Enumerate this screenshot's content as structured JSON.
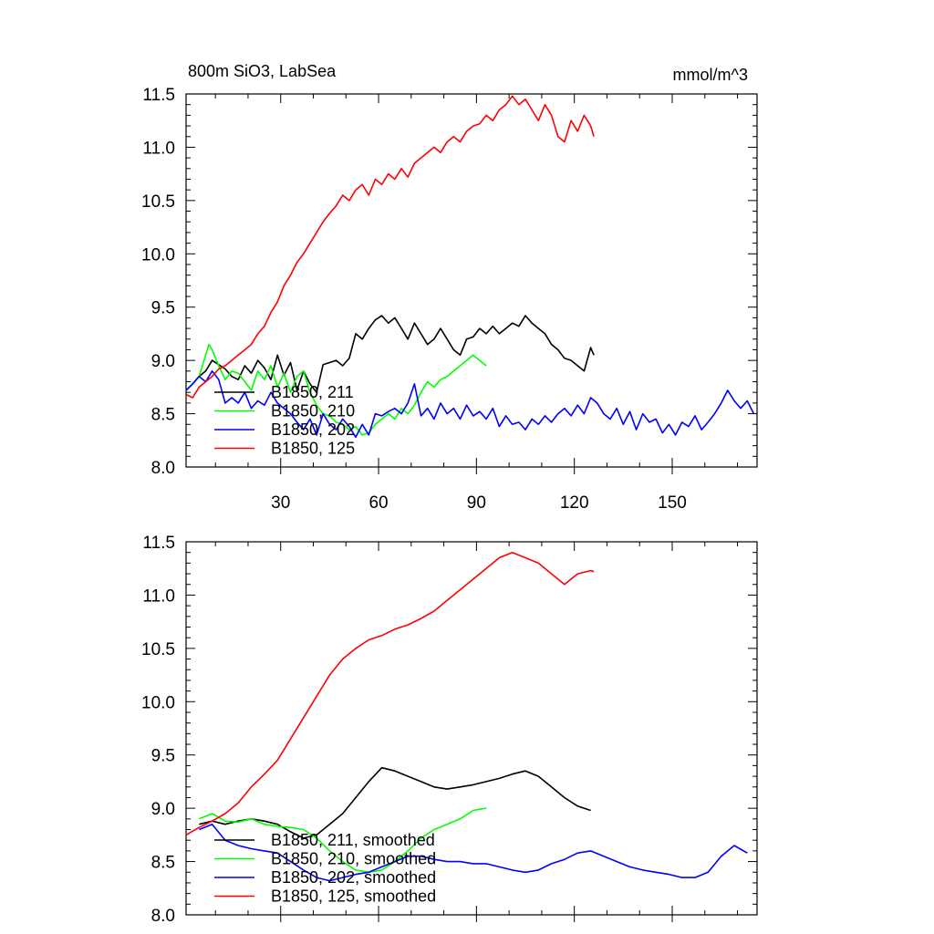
{
  "chart_data": [
    {
      "type": "line",
      "title": "800m SiO3, LabSea",
      "units": "mmol/m^3",
      "xlim": [
        1,
        176
      ],
      "ylim": [
        8.0,
        11.5
      ],
      "x_ticks": [
        30,
        60,
        90,
        120,
        150
      ],
      "x_tick_labels": [
        "30",
        "60",
        "90",
        "120",
        "150"
      ],
      "y_ticks": [
        8.0,
        8.5,
        9.0,
        9.5,
        10.0,
        10.5,
        11.0,
        11.5
      ],
      "y_tick_labels": [
        "8.0",
        "8.5",
        "9.0",
        "9.5",
        "10.0",
        "10.5",
        "11.0",
        "11.5"
      ],
      "legend_position": "bottom-left",
      "series": [
        {
          "name": "B1850, 211",
          "color": "#000000",
          "x": [
            1,
            3,
            5,
            7,
            9,
            11,
            13,
            15,
            17,
            19,
            21,
            23,
            25,
            27,
            29,
            31,
            33,
            35,
            37,
            39,
            41,
            43,
            45,
            47,
            49,
            51,
            53,
            55,
            57,
            59,
            61,
            63,
            65,
            67,
            69,
            71,
            73,
            75,
            77,
            79,
            81,
            83,
            85,
            87,
            89,
            91,
            93,
            95,
            97,
            99,
            101,
            103,
            105,
            107,
            109,
            111,
            113,
            115,
            117,
            119,
            121,
            123,
            125,
            126
          ],
          "y": [
            8.72,
            8.78,
            8.85,
            8.9,
            9.0,
            8.96,
            8.92,
            8.85,
            8.82,
            8.95,
            8.88,
            9.0,
            8.93,
            8.82,
            9.05,
            8.86,
            8.98,
            8.72,
            8.9,
            8.78,
            8.7,
            8.96,
            8.98,
            9.0,
            8.95,
            9.02,
            9.25,
            9.2,
            9.3,
            9.38,
            9.42,
            9.35,
            9.4,
            9.3,
            9.2,
            9.35,
            9.25,
            9.15,
            9.2,
            9.3,
            9.2,
            9.1,
            9.05,
            9.2,
            9.22,
            9.3,
            9.25,
            9.32,
            9.25,
            9.3,
            9.35,
            9.32,
            9.42,
            9.35,
            9.3,
            9.25,
            9.15,
            9.1,
            9.02,
            9.0,
            8.95,
            8.9,
            9.12,
            9.05
          ]
        },
        {
          "name": "B1850, 210",
          "color": "#00ff00",
          "x": [
            1,
            3,
            5,
            7,
            8,
            9,
            11,
            13,
            15,
            17,
            19,
            21,
            23,
            25,
            27,
            29,
            31,
            33,
            35,
            37,
            39,
            41,
            43,
            45,
            47,
            49,
            51,
            53,
            55,
            57,
            59,
            61,
            63,
            65,
            67,
            69,
            71,
            73,
            75,
            77,
            79,
            81,
            83,
            85,
            87,
            89,
            91,
            93
          ],
          "y": [
            8.72,
            8.78,
            8.85,
            9.05,
            9.15,
            9.1,
            8.95,
            8.82,
            8.9,
            8.88,
            8.8,
            8.72,
            8.9,
            8.82,
            8.95,
            8.75,
            8.88,
            8.7,
            8.85,
            8.9,
            8.7,
            8.58,
            8.5,
            8.48,
            8.42,
            8.4,
            8.35,
            8.38,
            8.3,
            8.32,
            8.4,
            8.45,
            8.5,
            8.45,
            8.55,
            8.5,
            8.58,
            8.7,
            8.8,
            8.75,
            8.82,
            8.85,
            8.9,
            8.95,
            9.0,
            9.05,
            9.0,
            8.95
          ]
        },
        {
          "name": "B1850, 202",
          "color": "#0000ff",
          "x": [
            1,
            3,
            5,
            7,
            9,
            11,
            13,
            15,
            17,
            19,
            21,
            23,
            25,
            27,
            29,
            31,
            33,
            35,
            37,
            39,
            41,
            43,
            45,
            47,
            49,
            51,
            53,
            55,
            57,
            59,
            61,
            63,
            65,
            67,
            69,
            71,
            73,
            75,
            77,
            79,
            81,
            83,
            85,
            87,
            89,
            91,
            93,
            95,
            97,
            99,
            101,
            103,
            105,
            107,
            109,
            111,
            113,
            115,
            117,
            119,
            121,
            123,
            125,
            127,
            129,
            131,
            133,
            135,
            137,
            139,
            141,
            143,
            145,
            147,
            149,
            151,
            153,
            155,
            157,
            159,
            161,
            163,
            165,
            167,
            169,
            171,
            173,
            175
          ],
          "y": [
            8.72,
            8.78,
            8.85,
            8.8,
            8.9,
            8.82,
            8.6,
            8.65,
            8.6,
            8.7,
            8.55,
            8.62,
            8.58,
            8.7,
            8.6,
            8.55,
            8.5,
            8.42,
            8.35,
            8.45,
            8.3,
            8.5,
            8.4,
            8.35,
            8.45,
            8.38,
            8.28,
            8.4,
            8.3,
            8.5,
            8.48,
            8.52,
            8.55,
            8.5,
            8.6,
            8.78,
            8.48,
            8.55,
            8.45,
            8.6,
            8.5,
            8.55,
            8.45,
            8.58,
            8.48,
            8.52,
            8.45,
            8.55,
            8.38,
            8.48,
            8.4,
            8.42,
            8.35,
            8.45,
            8.4,
            8.48,
            8.42,
            8.5,
            8.55,
            8.48,
            8.58,
            8.5,
            8.65,
            8.6,
            8.5,
            8.45,
            8.55,
            8.4,
            8.52,
            8.35,
            8.5,
            8.42,
            8.45,
            8.32,
            8.4,
            8.3,
            8.42,
            8.38,
            8.48,
            8.35,
            8.42,
            8.5,
            8.6,
            8.72,
            8.62,
            8.55,
            8.62,
            8.5
          ]
        },
        {
          "name": "B1850, 125",
          "color": "#ff0000",
          "x": [
            1,
            3,
            5,
            7,
            9,
            11,
            13,
            15,
            17,
            19,
            21,
            23,
            25,
            27,
            29,
            31,
            33,
            35,
            37,
            39,
            41,
            43,
            45,
            47,
            49,
            51,
            53,
            55,
            57,
            59,
            61,
            63,
            65,
            67,
            69,
            71,
            73,
            75,
            77,
            79,
            81,
            83,
            85,
            87,
            89,
            91,
            93,
            95,
            97,
            99,
            101,
            103,
            105,
            107,
            109,
            111,
            113,
            115,
            117,
            119,
            121,
            123,
            125,
            126
          ],
          "y": [
            8.68,
            8.65,
            8.75,
            8.8,
            8.85,
            8.92,
            8.95,
            9.0,
            9.05,
            9.1,
            9.15,
            9.25,
            9.32,
            9.45,
            9.55,
            9.7,
            9.8,
            9.92,
            10.0,
            10.1,
            10.2,
            10.3,
            10.38,
            10.45,
            10.55,
            10.5,
            10.6,
            10.65,
            10.55,
            10.7,
            10.65,
            10.75,
            10.7,
            10.8,
            10.72,
            10.85,
            10.9,
            10.95,
            11.0,
            10.95,
            11.05,
            11.1,
            11.05,
            11.15,
            11.2,
            11.22,
            11.3,
            11.25,
            11.35,
            11.4,
            11.48,
            11.4,
            11.45,
            11.35,
            11.25,
            11.4,
            11.3,
            11.1,
            11.05,
            11.25,
            11.15,
            11.3,
            11.2,
            11.1
          ]
        }
      ]
    },
    {
      "type": "line",
      "xlim": [
        1,
        176
      ],
      "ylim": [
        8.0,
        11.5
      ],
      "y_ticks": [
        8.0,
        8.5,
        9.0,
        9.5,
        10.0,
        10.5,
        11.0,
        11.5
      ],
      "y_tick_labels": [
        "8.0",
        "8.5",
        "9.0",
        "9.5",
        "10.0",
        "10.5",
        "11.0",
        "11.5"
      ],
      "x_ticks": [
        30,
        60,
        90,
        120,
        150
      ],
      "legend_position": "bottom-left",
      "series": [
        {
          "name": "B1850, 211, smoothed",
          "color": "#000000",
          "x": [
            5,
            9,
            13,
            17,
            21,
            25,
            29,
            33,
            37,
            41,
            45,
            49,
            53,
            57,
            61,
            65,
            69,
            73,
            77,
            81,
            85,
            89,
            93,
            97,
            101,
            105,
            109,
            113,
            117,
            121,
            125
          ],
          "y": [
            8.85,
            8.88,
            8.85,
            8.88,
            8.9,
            8.88,
            8.85,
            8.78,
            8.72,
            8.75,
            8.85,
            8.95,
            9.1,
            9.25,
            9.38,
            9.35,
            9.3,
            9.25,
            9.2,
            9.18,
            9.2,
            9.22,
            9.25,
            9.28,
            9.32,
            9.35,
            9.3,
            9.2,
            9.1,
            9.02,
            8.98
          ]
        },
        {
          "name": "B1850, 210, smoothed",
          "color": "#00ff00",
          "x": [
            5,
            9,
            13,
            17,
            21,
            25,
            29,
            33,
            37,
            41,
            45,
            49,
            53,
            57,
            61,
            65,
            69,
            73,
            77,
            81,
            85,
            89,
            93
          ],
          "y": [
            8.9,
            8.95,
            8.88,
            8.87,
            8.9,
            8.85,
            8.83,
            8.82,
            8.8,
            8.72,
            8.6,
            8.5,
            8.42,
            8.4,
            8.42,
            8.5,
            8.6,
            8.72,
            8.8,
            8.85,
            8.9,
            8.98,
            9.0
          ]
        },
        {
          "name": "B1850, 202, smoothed",
          "color": "#0000ff",
          "x": [
            5,
            9,
            13,
            17,
            21,
            25,
            29,
            33,
            37,
            41,
            45,
            49,
            53,
            57,
            61,
            65,
            69,
            73,
            77,
            81,
            85,
            89,
            93,
            97,
            101,
            105,
            109,
            113,
            117,
            121,
            125,
            129,
            133,
            137,
            141,
            145,
            149,
            153,
            157,
            161,
            165,
            169,
            173
          ],
          "y": [
            8.8,
            8.85,
            8.7,
            8.65,
            8.62,
            8.6,
            8.58,
            8.5,
            8.42,
            8.35,
            8.32,
            8.35,
            8.38,
            8.4,
            8.45,
            8.5,
            8.55,
            8.55,
            8.52,
            8.5,
            8.5,
            8.48,
            8.48,
            8.45,
            8.42,
            8.4,
            8.42,
            8.48,
            8.52,
            8.58,
            8.6,
            8.55,
            8.5,
            8.45,
            8.42,
            8.4,
            8.38,
            8.35,
            8.35,
            8.4,
            8.55,
            8.65,
            8.58
          ]
        },
        {
          "name": "B1850, 125, smoothed",
          "color": "#ff0000",
          "x": [
            1,
            5,
            9,
            13,
            17,
            21,
            25,
            29,
            33,
            37,
            41,
            45,
            49,
            53,
            57,
            61,
            65,
            69,
            73,
            77,
            81,
            85,
            89,
            93,
            97,
            101,
            105,
            109,
            113,
            117,
            121,
            125,
            126
          ],
          "y": [
            8.75,
            8.82,
            8.88,
            8.95,
            9.05,
            9.2,
            9.32,
            9.45,
            9.65,
            9.85,
            10.05,
            10.25,
            10.4,
            10.5,
            10.58,
            10.62,
            10.68,
            10.72,
            10.78,
            10.85,
            10.95,
            11.05,
            11.15,
            11.25,
            11.35,
            11.4,
            11.35,
            11.3,
            11.2,
            11.1,
            11.2,
            11.23,
            11.22
          ]
        }
      ]
    }
  ]
}
